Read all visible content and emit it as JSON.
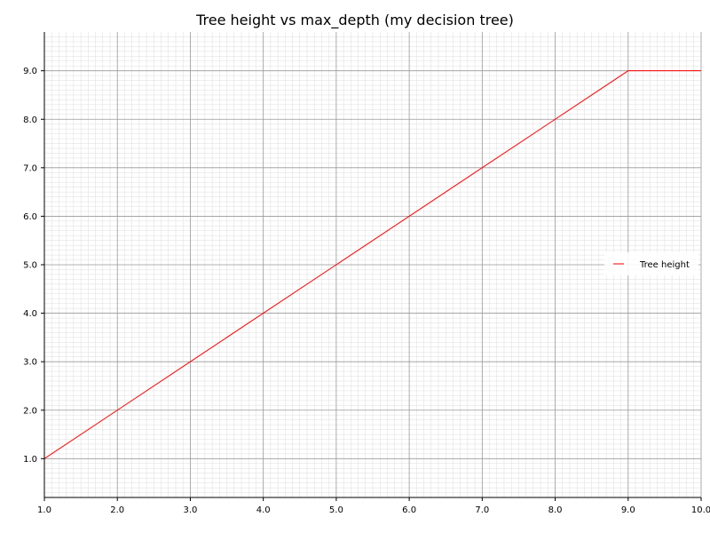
{
  "chart_data": {
    "type": "line",
    "title": "Tree height vs max_depth (my decision tree)",
    "xlabel": "",
    "ylabel": "",
    "xlim": [
      1.0,
      10.0
    ],
    "ylim": [
      0.2,
      9.8
    ],
    "x_ticks": [
      "1.0",
      "2.0",
      "3.0",
      "4.0",
      "5.0",
      "6.0",
      "7.0",
      "8.0",
      "9.0",
      "10.0"
    ],
    "y_ticks": [
      "1.0",
      "2.0",
      "3.0",
      "4.0",
      "5.0",
      "6.0",
      "7.0",
      "8.0",
      "9.0"
    ],
    "grid": true,
    "minor_grid": true,
    "legend_position": "right",
    "series": [
      {
        "name": "Tree height",
        "color": "#ff0000",
        "x": [
          1,
          2,
          3,
          4,
          5,
          6,
          7,
          8,
          9,
          10
        ],
        "y": [
          1,
          2,
          3,
          4,
          5,
          6,
          7,
          8,
          9,
          9
        ]
      }
    ]
  }
}
